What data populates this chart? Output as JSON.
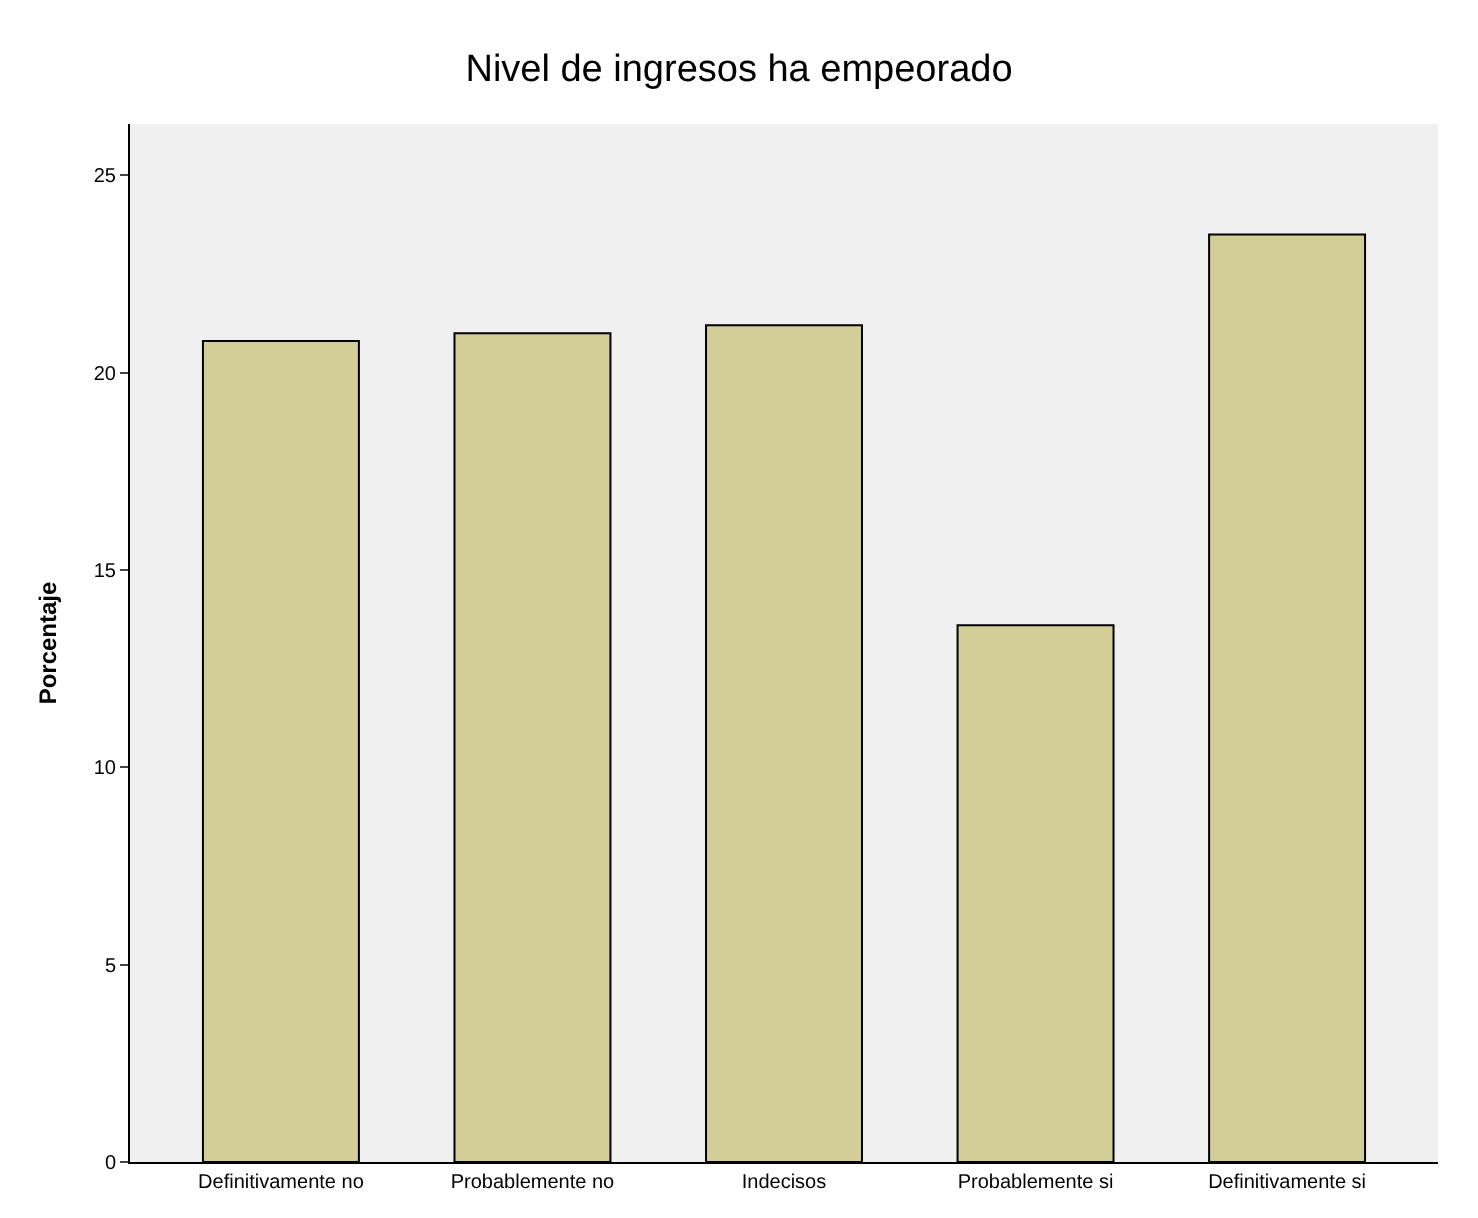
{
  "chart_data": {
    "type": "bar",
    "title": "Nivel de ingresos ha empeorado",
    "ylabel": "Porcentaje",
    "categories": [
      "Definitivamente no",
      "Probablemente no",
      "Indecisos",
      "Probablemente si",
      "Definitivamente si"
    ],
    "values": [
      20.8,
      21.0,
      21.2,
      13.6,
      23.5
    ],
    "color": "#d3ce97",
    "ylim": [
      0,
      26.3
    ],
    "yticks": [
      0,
      5,
      10,
      15,
      20,
      25
    ],
    "grid": false
  }
}
